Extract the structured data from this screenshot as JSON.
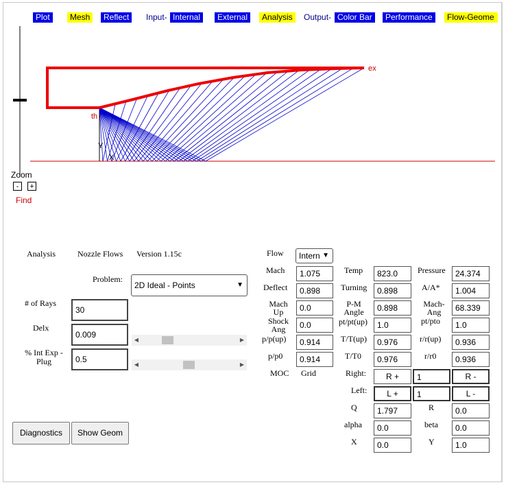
{
  "menu": {
    "plot": "Plot",
    "mesh": "Mesh",
    "reflect": "Reflect",
    "input_label": "Input-",
    "internal": "Internal",
    "external": "External",
    "analysis": "Analysis",
    "output_label": "Output-",
    "color_bar": "Color Bar",
    "performance": "Performance",
    "flow_geom": "Flow-Geome"
  },
  "plot": {
    "exit_label": "ex",
    "throat_label": "th",
    "y_label": "Y",
    "x_label": "X",
    "zoom_label": "Zoom",
    "zoom_out": "-",
    "zoom_in": "+",
    "find": "Find",
    "colors": {
      "wall": "#ee0000",
      "rays": "#0000cc",
      "axis": "#cc0000"
    }
  },
  "panel": {
    "analysis_title": "Analysis",
    "app_name": "Nozzle Flows",
    "version": "Version 1.15c",
    "problem_label": "Problem:",
    "problem_value": "2D Ideal - Points",
    "rays_label": "# of Rays",
    "rays_value": "30",
    "delx_label": "Delx",
    "delx_value": "0.009",
    "intexp_label": "% Int Exp - Plug",
    "intexp_value": "0.5",
    "diagnostics": "Diagnostics",
    "show_geom": "Show Geom"
  },
  "flow": {
    "flow_label": "Flow",
    "flow_value": "Intern",
    "mach_label": "Mach",
    "mach_value": "1.075",
    "deflect_label": "Deflect",
    "deflect_value": "0.898",
    "machup_label": "Mach Up",
    "machup_value": "0.0",
    "shock_label": "Shock Ang",
    "shock_value": "0.0",
    "ppup_label": "p/p(up)",
    "ppup_value": "0.914",
    "pp0_label": "p/p0",
    "pp0_value": "0.914",
    "moc_label": "MOC",
    "grid_label": "Grid",
    "temp_label": "Temp",
    "temp_value": "823.0",
    "turning_label": "Turning",
    "turning_value": "0.898",
    "pm_label": "P-M Angle",
    "pm_value": "0.898",
    "ptup_label": "pt/pt(up)",
    "ptup_value": "1.0",
    "ttup_label": "T/T(up)",
    "ttup_value": "0.976",
    "tt0_label": "T/T0",
    "tt0_value": "0.976",
    "pressure_label": "Pressure",
    "pressure_value": "24.374",
    "aa_label": "A/A*",
    "aa_value": "1.004",
    "machang_label": "Mach-Ang",
    "machang_value": "68.339",
    "ptpto_label": "pt/pto",
    "ptpto_value": "1.0",
    "rrup_label": "r/r(up)",
    "rrup_value": "0.936",
    "rr0_label": "r/r0",
    "rr0_value": "0.936",
    "right_label": "Right:",
    "right_plus": "R +",
    "right_value": "1",
    "right_minus": "R -",
    "left_label": "Left:",
    "left_plus": "L +",
    "left_value": "1",
    "left_minus": "L -",
    "q_label": "Q",
    "q_value": "1.797",
    "r_label": "R",
    "r_value": "0.0",
    "alpha_label": "alpha",
    "alpha_value": "0.0",
    "beta_label": "beta",
    "beta_value": "0.0",
    "x_label": "X",
    "x_value": "0.0",
    "y_label": "Y",
    "y_value": "1.0"
  }
}
